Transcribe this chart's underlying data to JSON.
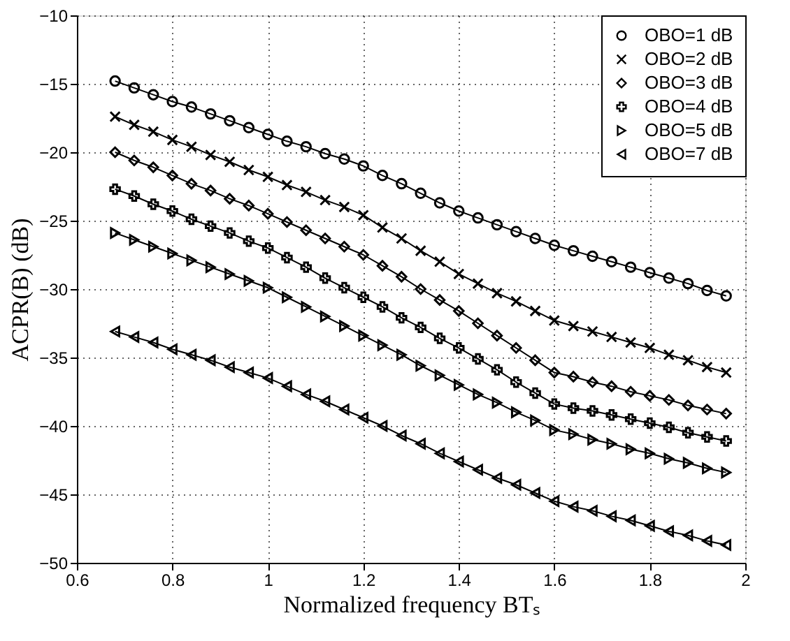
{
  "chart_data": {
    "type": "line",
    "xlabel": "Normalized frequency BTₛ",
    "ylabel": "ACPR(B) (dB)",
    "x": [
      0.68,
      0.72,
      0.76,
      0.8,
      0.84,
      0.88,
      0.92,
      0.96,
      1.0,
      1.04,
      1.08,
      1.12,
      1.16,
      1.2,
      1.24,
      1.28,
      1.32,
      1.36,
      1.4,
      1.44,
      1.48,
      1.52,
      1.56,
      1.6,
      1.64,
      1.68,
      1.72,
      1.76,
      1.8,
      1.84,
      1.88,
      1.92,
      1.96
    ],
    "series": [
      {
        "name": "OBO=1 dB",
        "color": "#000000",
        "marker": "circle",
        "values": [
          -14.8,
          -15.3,
          -15.8,
          -16.3,
          -16.7,
          -17.2,
          -17.7,
          -18.2,
          -18.7,
          -19.2,
          -19.6,
          -20.1,
          -20.5,
          -21.0,
          -21.7,
          -22.3,
          -23.0,
          -23.7,
          -24.3,
          -24.8,
          -25.3,
          -25.8,
          -26.3,
          -26.8,
          -27.2,
          -27.6,
          -28.0,
          -28.4,
          -28.8,
          -29.2,
          -29.6,
          -30.1,
          -30.5
        ]
      },
      {
        "name": "OBO=2 dB",
        "color": "#000000",
        "marker": "x",
        "values": [
          -17.4,
          -18.0,
          -18.5,
          -19.1,
          -19.6,
          -20.2,
          -20.7,
          -21.3,
          -21.8,
          -22.4,
          -22.9,
          -23.5,
          -24.0,
          -24.6,
          -25.5,
          -26.3,
          -27.2,
          -28.0,
          -28.9,
          -29.6,
          -30.3,
          -30.9,
          -31.6,
          -32.3,
          -32.7,
          -33.1,
          -33.5,
          -33.9,
          -34.3,
          -34.8,
          -35.2,
          -35.7,
          -36.1
        ]
      },
      {
        "name": "OBO=3 dB",
        "color": "#000000",
        "marker": "diamond",
        "values": [
          -20.0,
          -20.6,
          -21.1,
          -21.7,
          -22.3,
          -22.8,
          -23.4,
          -23.9,
          -24.5,
          -25.1,
          -25.7,
          -26.3,
          -26.9,
          -27.5,
          -28.3,
          -29.1,
          -30.0,
          -30.8,
          -31.6,
          -32.5,
          -33.4,
          -34.3,
          -35.2,
          -36.1,
          -36.4,
          -36.8,
          -37.1,
          -37.5,
          -37.8,
          -38.1,
          -38.5,
          -38.8,
          -39.1
        ]
      },
      {
        "name": "OBO=4 dB",
        "color": "#000000",
        "marker": "plus",
        "values": [
          -22.7,
          -23.2,
          -23.8,
          -24.3,
          -24.9,
          -25.4,
          -25.9,
          -26.5,
          -27.0,
          -27.7,
          -28.4,
          -29.2,
          -29.9,
          -30.6,
          -31.3,
          -32.1,
          -32.8,
          -33.6,
          -34.3,
          -35.1,
          -35.9,
          -36.8,
          -37.6,
          -38.4,
          -38.7,
          -38.9,
          -39.2,
          -39.5,
          -39.8,
          -40.1,
          -40.5,
          -40.8,
          -41.1
        ]
      },
      {
        "name": "OBO=5 dB",
        "color": "#000000",
        "marker": "triangle-right",
        "values": [
          -25.9,
          -26.4,
          -26.9,
          -27.4,
          -27.9,
          -28.4,
          -28.9,
          -29.4,
          -29.9,
          -30.6,
          -31.3,
          -32.0,
          -32.7,
          -33.4,
          -34.1,
          -34.8,
          -35.6,
          -36.3,
          -37.0,
          -37.7,
          -38.3,
          -39.0,
          -39.6,
          -40.3,
          -40.6,
          -41.0,
          -41.3,
          -41.7,
          -42.0,
          -42.4,
          -42.7,
          -43.1,
          -43.4
        ]
      },
      {
        "name": "OBO=7 dB",
        "color": "#000000",
        "marker": "triangle-left",
        "values": [
          -33.1,
          -33.5,
          -33.9,
          -34.4,
          -34.8,
          -35.2,
          -35.7,
          -36.1,
          -36.5,
          -37.1,
          -37.7,
          -38.2,
          -38.8,
          -39.4,
          -40.0,
          -40.7,
          -41.3,
          -42.0,
          -42.6,
          -43.2,
          -43.8,
          -44.3,
          -44.9,
          -45.5,
          -45.9,
          -46.2,
          -46.6,
          -46.9,
          -47.3,
          -47.7,
          -48.0,
          -48.4,
          -48.7
        ]
      }
    ],
    "xlim": [
      0.6,
      2
    ],
    "xticks": [
      0.6,
      0.8,
      1,
      1.2,
      1.4,
      1.6,
      1.8,
      2
    ],
    "ylim": [
      -50,
      -10
    ],
    "yticks": [
      -50,
      -45,
      -40,
      -35,
      -30,
      -25,
      -20,
      -15,
      -10
    ],
    "grid": true,
    "legend": "top right",
    "line_style": "solid"
  }
}
